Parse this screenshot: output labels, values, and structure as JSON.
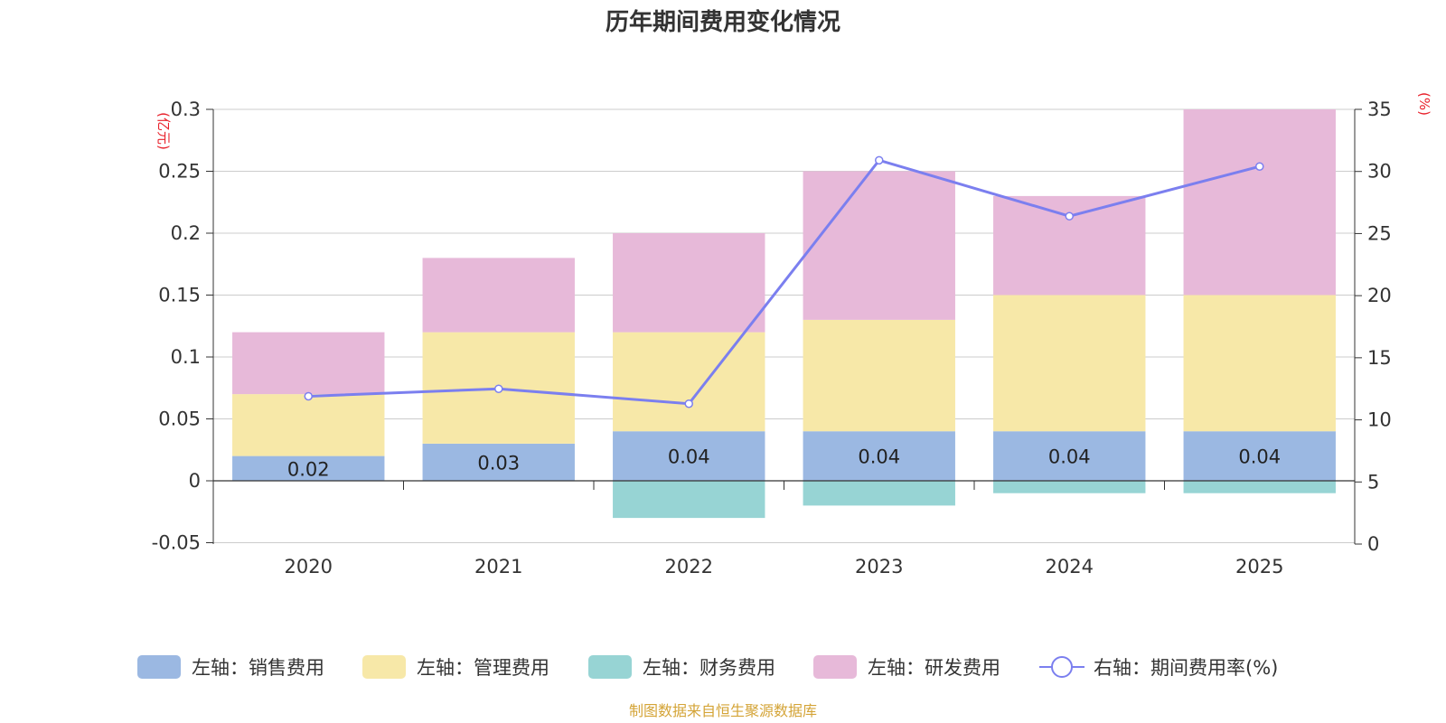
{
  "chart_data": {
    "type": "bar",
    "title": "历年期间费用变化情况",
    "categories": [
      "2020",
      "2021",
      "2022",
      "2023",
      "2024",
      "2025"
    ],
    "left_axis": {
      "unit_label": "(亿元)",
      "ylim": [
        -0.05,
        0.3
      ],
      "ticks": [
        -0.05,
        0,
        0.05,
        0.1,
        0.15,
        0.2,
        0.25,
        0.3
      ],
      "tick_labels": [
        "-0.05",
        "0",
        "0.05",
        "0.1",
        "0.15",
        "0.2",
        "0.25",
        "0.3"
      ]
    },
    "right_axis": {
      "unit_label": "(%)",
      "ylim": [
        0,
        35
      ],
      "ticks": [
        0,
        5,
        10,
        15,
        20,
        25,
        30,
        35
      ],
      "tick_labels": [
        "0",
        "5",
        "10",
        "15",
        "20",
        "25",
        "30",
        "35"
      ]
    },
    "series": [
      {
        "name": "左轴：销售费用",
        "kind": "bar",
        "axis": "left",
        "color": "#9bb8e2",
        "values": [
          0.02,
          0.03,
          0.04,
          0.04,
          0.04,
          0.04
        ],
        "data_labels": [
          "0.02",
          "0.03",
          "0.04",
          "0.04",
          "0.04",
          "0.04"
        ]
      },
      {
        "name": "左轴：管理费用",
        "kind": "bar",
        "axis": "left",
        "color": "#f7e8a8",
        "values": [
          0.05,
          0.09,
          0.08,
          0.09,
          0.11,
          0.11
        ]
      },
      {
        "name": "左轴：财务费用",
        "kind": "bar",
        "axis": "left",
        "color": "#97d4d4",
        "values": [
          0.0,
          0.0,
          -0.03,
          -0.02,
          -0.01,
          -0.01
        ]
      },
      {
        "name": "左轴：研发费用",
        "kind": "bar",
        "axis": "left",
        "color": "#e7b9d9",
        "values": [
          0.05,
          0.06,
          0.08,
          0.12,
          0.08,
          0.15
        ]
      },
      {
        "name": "右轴：期间费用率(%)",
        "kind": "line",
        "axis": "right",
        "color": "#7b7fef",
        "values": [
          11.9,
          12.5,
          11.3,
          30.9,
          26.4,
          30.4
        ]
      }
    ],
    "source_note": "制图数据来自恒生聚源数据库",
    "legend_position": "bottom"
  }
}
